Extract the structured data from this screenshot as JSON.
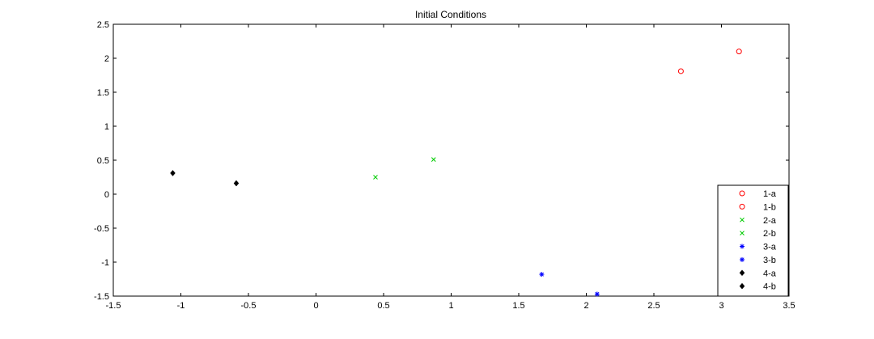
{
  "chart_data": {
    "type": "scatter",
    "title": "Initial Conditions",
    "xlabel": "",
    "ylabel": "",
    "xlim": [
      -1.5,
      3.5
    ],
    "ylim": [
      -1.5,
      2.5
    ],
    "xticks": [
      "-1.5",
      "-1",
      "-0.5",
      "0",
      "0.5",
      "1",
      "1.5",
      "2",
      "2.5",
      "3",
      "3.5"
    ],
    "yticks": [
      "2.5",
      "2",
      "1.5",
      "1",
      "0.5",
      "0",
      "-0.5",
      "-1",
      "-1.5"
    ],
    "grid": false,
    "legend_position": "bottom-right",
    "series": [
      {
        "name": "1-a",
        "marker": "circle",
        "color": "#ff0000",
        "points": [
          [
            2.7,
            1.81
          ]
        ]
      },
      {
        "name": "1-b",
        "marker": "circle",
        "color": "#ff0000",
        "points": [
          [
            3.13,
            2.1
          ]
        ]
      },
      {
        "name": "2-a",
        "marker": "x",
        "color": "#00cc00",
        "points": [
          [
            0.44,
            0.25
          ]
        ]
      },
      {
        "name": "2-b",
        "marker": "x",
        "color": "#00cc00",
        "points": [
          [
            0.87,
            0.51
          ]
        ]
      },
      {
        "name": "3-a",
        "marker": "asterisk",
        "color": "#0000ff",
        "points": [
          [
            1.67,
            -1.18
          ]
        ]
      },
      {
        "name": "3-b",
        "marker": "asterisk",
        "color": "#0000ff",
        "points": [
          [
            2.08,
            -1.47
          ]
        ]
      },
      {
        "name": "4-a",
        "marker": "diamond",
        "color": "#000000",
        "points": [
          [
            -1.06,
            0.31
          ]
        ]
      },
      {
        "name": "4-b",
        "marker": "diamond",
        "color": "#000000",
        "points": [
          [
            -0.59,
            0.16
          ]
        ]
      }
    ]
  }
}
